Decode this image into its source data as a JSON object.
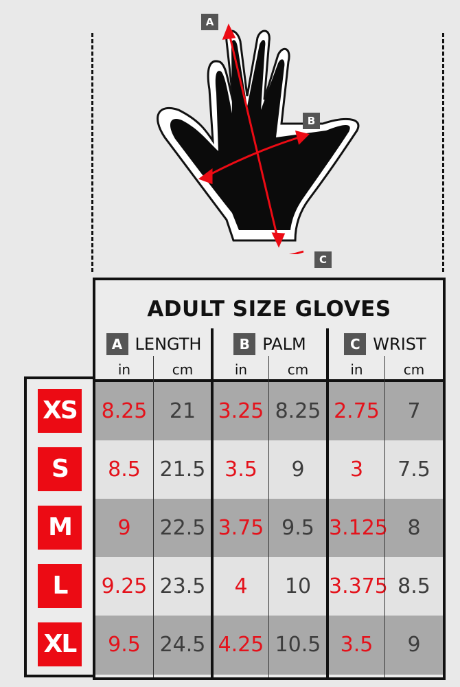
{
  "markers": {
    "a": "A",
    "b": "B",
    "c": "C"
  },
  "title": "ADULT SIZE GLOVES",
  "groups": [
    {
      "letter": "A",
      "label": "LENGTH"
    },
    {
      "letter": "B",
      "label": "PALM"
    },
    {
      "letter": "C",
      "label": "WRIST"
    }
  ],
  "units": [
    "in",
    "cm",
    "in",
    "cm",
    "in",
    "cm"
  ],
  "rows": [
    {
      "size": "XS",
      "values": [
        "8.25",
        "21",
        "3.25",
        "8.25",
        "2.75",
        "7"
      ]
    },
    {
      "size": "S",
      "values": [
        "8.5",
        "21.5",
        "3.5",
        "9",
        "3",
        "7.5"
      ]
    },
    {
      "size": "M",
      "values": [
        "9",
        "22.5",
        "3.75",
        "9.5",
        "3.125",
        "8"
      ]
    },
    {
      "size": "L",
      "values": [
        "9.25",
        "23.5",
        "4",
        "10",
        "3.375",
        "8.5"
      ]
    },
    {
      "size": "XL",
      "values": [
        "9.5",
        "24.5",
        "4.25",
        "10.5",
        "3.5",
        "9"
      ]
    }
  ],
  "colors": {
    "accent": "#ec0b14",
    "inch_text": "#e4121b",
    "cm_text": "#3d3d3d",
    "dark_row": "#a9a9a9",
    "light_row": "#e3e3e3",
    "badge": "#555555"
  }
}
